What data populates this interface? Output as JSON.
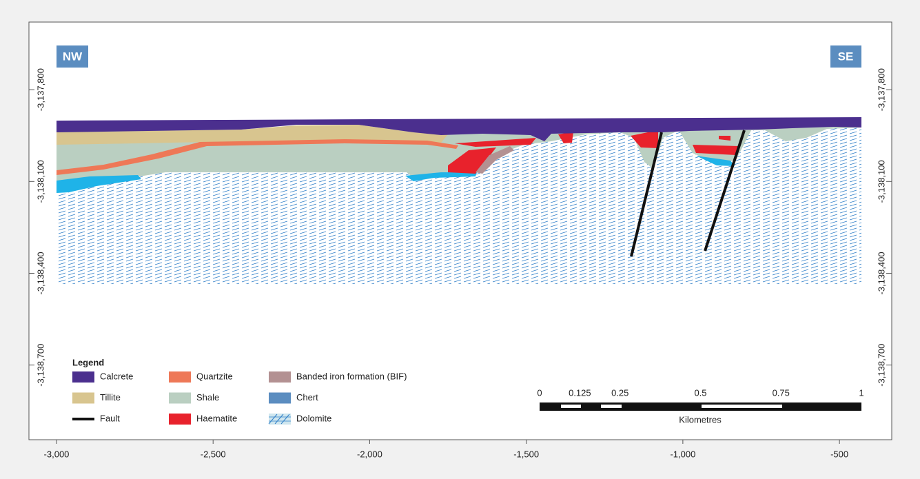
{
  "chart_data": {
    "type": "cross-section",
    "xlim": [
      -3088,
      -333
    ],
    "ylim": [
      -3138944,
      -3137579
    ],
    "xticks": [
      {
        "value": -3000,
        "label": "-3,000"
      },
      {
        "value": -2500,
        "label": "-2,500"
      },
      {
        "value": -2000,
        "label": "-2,000"
      },
      {
        "value": -1500,
        "label": "-1,500"
      },
      {
        "value": -1000,
        "label": "-1,000"
      },
      -500
    ],
    "yticks": [
      {
        "value": -3137800,
        "label": "-3,137,800"
      },
      {
        "value": -3138100,
        "label": "-3,138,100"
      },
      {
        "value": -3138400,
        "label": "-3,138,400"
      },
      {
        "value": -3138700,
        "label": "-3,138,700"
      }
    ],
    "direction_labels": [
      "NW",
      "SE"
    ],
    "legend": {
      "title": "Legend",
      "items": [
        {
          "name": "Calcrete",
          "color": "#4b2f8e"
        },
        {
          "name": "Tillite",
          "color": "#d8c58f"
        },
        {
          "name": "Fault",
          "color": "#111111"
        },
        {
          "name": "Quartzite",
          "color": "#ee7857"
        },
        {
          "name": "Shale",
          "color": "#bacfc1"
        },
        {
          "name": "Haematite",
          "color": "#e8222c"
        },
        {
          "name": "Banded iron formation (BIF)",
          "color": "#b39192"
        },
        {
          "name": "Chert",
          "color": "#5b8dc0"
        },
        {
          "name": "Dolomite",
          "color": "#2f7fc9"
        }
      ]
    },
    "scale_bar": {
      "ticks": [
        0,
        0.125,
        0.25,
        0.5,
        0.75,
        1
      ],
      "unit": "Kilometres"
    }
  }
}
